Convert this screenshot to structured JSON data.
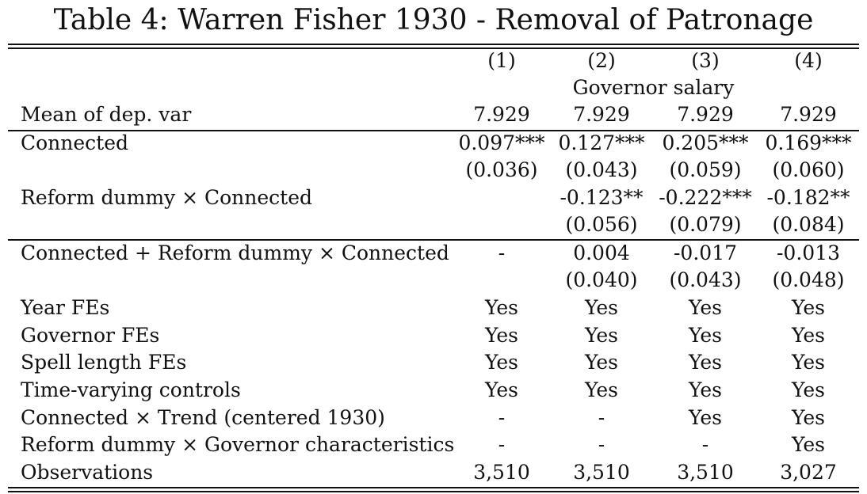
{
  "table": {
    "title": "Table 4: Warren Fisher 1930 - Removal of Patronage",
    "columns": [
      "(1)",
      "(2)",
      "(3)",
      "(4)"
    ],
    "dep_var_label": "Governor salary",
    "rows": [
      {
        "label": "Mean of dep. var",
        "values": [
          "7.929",
          "7.929",
          "7.929",
          "7.929"
        ]
      },
      {
        "label": "Connected",
        "values": [
          "0.097***",
          "0.127***",
          "0.205***",
          "0.169***"
        ]
      },
      {
        "label": "",
        "values": [
          "(0.036)",
          "(0.043)",
          "(0.059)",
          "(0.060)"
        ]
      },
      {
        "label": "Reform dummy × Connected",
        "values": [
          "",
          "-0.123**",
          "-0.222***",
          "-0.182**"
        ]
      },
      {
        "label": "",
        "values": [
          "",
          "(0.056)",
          "(0.079)",
          "(0.084)"
        ]
      },
      {
        "label": "Connected + Reform dummy × Connected",
        "values": [
          "-",
          "0.004",
          "-0.017",
          "-0.013"
        ]
      },
      {
        "label": "",
        "values": [
          "",
          "(0.040)",
          "(0.043)",
          "(0.048)"
        ]
      },
      {
        "label": "Year FEs",
        "values": [
          "Yes",
          "Yes",
          "Yes",
          "Yes"
        ]
      },
      {
        "label": "Governor FEs",
        "values": [
          "Yes",
          "Yes",
          "Yes",
          "Yes"
        ]
      },
      {
        "label": "Spell length FEs",
        "values": [
          "Yes",
          "Yes",
          "Yes",
          "Yes"
        ]
      },
      {
        "label": "Time-varying controls",
        "values": [
          "Yes",
          "Yes",
          "Yes",
          "Yes"
        ]
      },
      {
        "label": "Connected × Trend (centered 1930)",
        "values": [
          "-",
          "-",
          "Yes",
          "Yes"
        ]
      },
      {
        "label": "Reform dummy × Governor characteristics",
        "values": [
          "-",
          "-",
          "-",
          "Yes"
        ]
      },
      {
        "label": "Observations",
        "values": [
          "3,510",
          "3,510",
          "3,510",
          "3,027"
        ]
      }
    ]
  }
}
